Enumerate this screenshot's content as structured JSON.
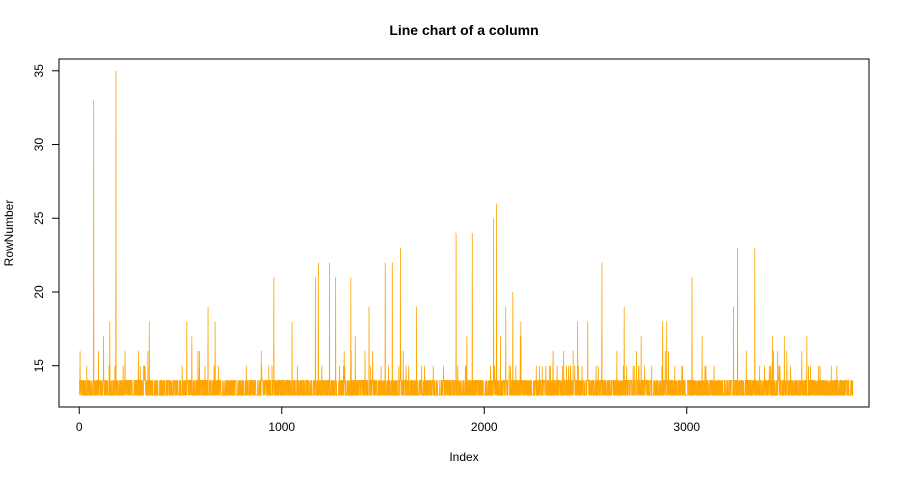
{
  "chart_data": {
    "type": "line",
    "title": "Line chart of a column",
    "xlabel": "Index",
    "ylabel": "RowNumber",
    "xlim": [
      -100,
      3900
    ],
    "ylim": [
      12.2,
      35.8
    ],
    "xticks": [
      0,
      1000,
      2000,
      3000
    ],
    "yticks": [
      15,
      20,
      25,
      30,
      35
    ],
    "n_points": 3820,
    "baseline": 13,
    "color": "#FFA500",
    "series": [
      {
        "color": "#FFA500",
        "peaks": [
          [
            70,
            33
          ],
          [
            180,
            35
          ],
          [
            150,
            18
          ],
          [
            345,
            18
          ],
          [
            530,
            18
          ],
          [
            635,
            19
          ],
          [
            670,
            18
          ],
          [
            960,
            21
          ],
          [
            1050,
            18
          ],
          [
            1165,
            21
          ],
          [
            1180,
            22
          ],
          [
            1235,
            22
          ],
          [
            1265,
            21
          ],
          [
            1340,
            21
          ],
          [
            1430,
            19
          ],
          [
            1510,
            22
          ],
          [
            1545,
            22
          ],
          [
            1585,
            23
          ],
          [
            1665,
            19
          ],
          [
            1860,
            24
          ],
          [
            1940,
            24
          ],
          [
            2045,
            25
          ],
          [
            2060,
            26
          ],
          [
            2105,
            19
          ],
          [
            2140,
            20
          ],
          [
            2180,
            18
          ],
          [
            2460,
            18
          ],
          [
            2510,
            18
          ],
          [
            2580,
            22
          ],
          [
            2690,
            19
          ],
          [
            2880,
            18
          ],
          [
            2900,
            18
          ],
          [
            3025,
            21
          ],
          [
            3230,
            19
          ],
          [
            3250,
            23
          ],
          [
            3335,
            23
          ]
        ]
      }
    ]
  }
}
